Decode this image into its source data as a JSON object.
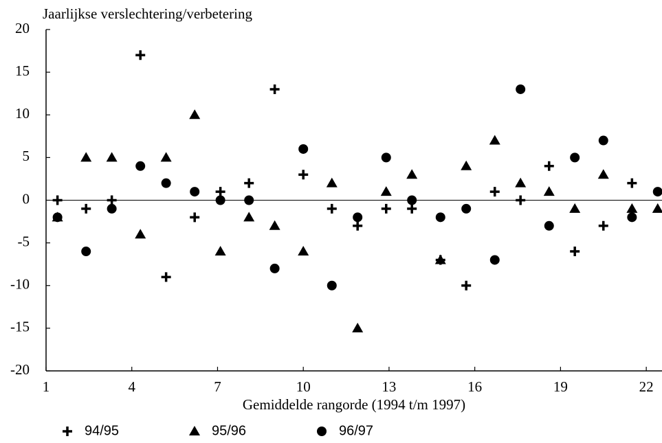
{
  "chart_data": {
    "type": "scatter",
    "ylabel": "Jaarlijkse verslechtering/verbetering",
    "xlabel": "Gemiddelde rangorde (1994 t/m 1997)",
    "x": [
      1.4,
      2.4,
      3.3,
      4.3,
      5.2,
      6.2,
      7.1,
      8.1,
      9.0,
      10.0,
      11.0,
      11.9,
      12.9,
      13.8,
      14.8,
      15.7,
      16.7,
      17.6,
      18.6,
      19.5,
      20.5,
      21.5,
      22.4
    ],
    "series": [
      {
        "name": "94/95",
        "color": "#000000",
        "marker": "plus",
        "values": [
          0,
          -1,
          0,
          17,
          -9,
          -2,
          1,
          2,
          13,
          3,
          -1,
          -3,
          -1,
          -1,
          -7,
          -10,
          1,
          0,
          4,
          -6,
          -3,
          2,
          null
        ]
      },
      {
        "name": "95/96",
        "color": "#000000",
        "marker": "triangle",
        "values": [
          -2,
          5,
          5,
          -4,
          5,
          10,
          -6,
          -2,
          -3,
          -6,
          2,
          -15,
          1,
          3,
          -7,
          4,
          7,
          2,
          1,
          -1,
          3,
          -1,
          -1
        ]
      },
      {
        "name": "96/97",
        "color": "#000000",
        "marker": "circle",
        "values": [
          -2,
          -6,
          -1,
          4,
          2,
          1,
          0,
          0,
          -8,
          6,
          -10,
          -2,
          5,
          0,
          -2,
          -1,
          -7,
          13,
          -3,
          5,
          7,
          -2,
          1
        ]
      }
    ],
    "xlim": [
      1,
      22.55
    ],
    "xticks": [
      1,
      4,
      7,
      10,
      13,
      16,
      19,
      22
    ],
    "ylim": [
      -20,
      20
    ],
    "yticks": [
      20,
      15,
      10,
      5,
      0,
      -5,
      -10,
      -15,
      -20
    ],
    "zero_line": true,
    "legend": "bottom"
  }
}
